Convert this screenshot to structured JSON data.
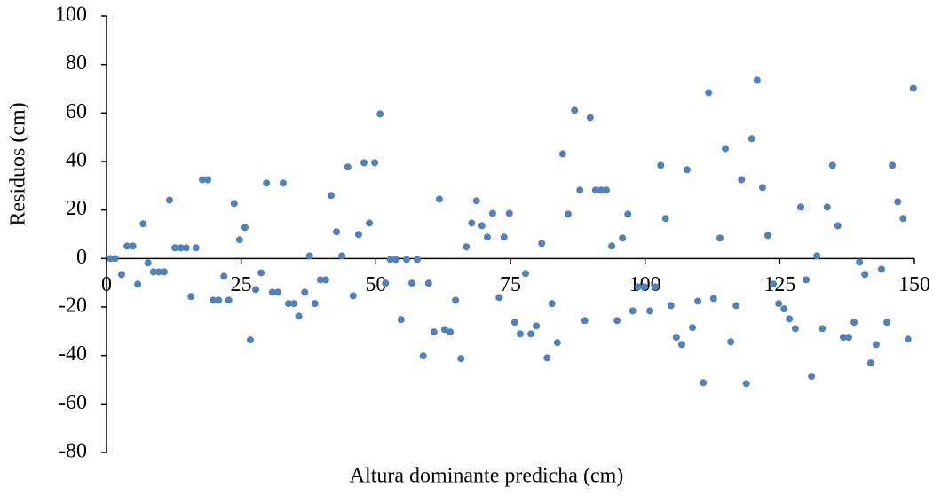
{
  "chart_data": {
    "type": "scatter",
    "x_label": "Altura dominante predicha (cm)",
    "y_label": "Residuos (cm)",
    "color": "#4f81bd",
    "xlim": [
      0,
      150
    ],
    "xticks": [
      0,
      25,
      50,
      75,
      100,
      125,
      150
    ],
    "ylim": [
      -80,
      100
    ],
    "yticks": [
      -80,
      -60,
      -40,
      -20,
      0,
      20,
      40,
      60,
      80,
      100
    ],
    "grid": false,
    "x": [
      0.7,
      1.6,
      2.8,
      3.8,
      4.9,
      5.8,
      6.8,
      7.7,
      8.7,
      9.7,
      10.7,
      11.7,
      12.7,
      13.8,
      14.8,
      15.7,
      16.6,
      17.8,
      18.8,
      19.8,
      20.8,
      21.8,
      22.7,
      23.7,
      24.7,
      25.7,
      26.7,
      27.7,
      28.7,
      29.7,
      30.8,
      31.8,
      32.8,
      33.8,
      34.8,
      35.7,
      36.8,
      37.7,
      38.7,
      39.7,
      40.7,
      41.7,
      42.7,
      43.7,
      44.8,
      45.8,
      46.8,
      47.8,
      48.8,
      49.8,
      50.8,
      51.8,
      52.7,
      53.7,
      54.7,
      55.7,
      56.7,
      57.7,
      58.8,
      59.8,
      60.8,
      61.8,
      62.8,
      63.8,
      64.8,
      65.8,
      66.8,
      67.8,
      68.7,
      69.7,
      70.7,
      71.7,
      72.9,
      73.8,
      74.8,
      75.8,
      76.8,
      77.8,
      78.8,
      79.8,
      80.8,
      81.8,
      82.7,
      83.7,
      84.7,
      85.7,
      86.9,
      87.9,
      88.8,
      89.8,
      90.8,
      91.8,
      92.8,
      93.8,
      94.8,
      95.8,
      96.8,
      97.7,
      98.7,
      99.9,
      100.9,
      101.9,
      102.9,
      103.8,
      104.8,
      105.8,
      106.8,
      107.8,
      108.8,
      109.8,
      110.8,
      111.8,
      112.7,
      113.9,
      114.9,
      115.9,
      116.9,
      117.9,
      118.8,
      119.8,
      120.8,
      121.8,
      122.8,
      123.8,
      124.8,
      125.8,
      126.8,
      127.9,
      128.9,
      129.9,
      130.9,
      131.9,
      132.9,
      133.8,
      134.8,
      135.8,
      136.8,
      137.8,
      138.8,
      139.8,
      140.8,
      141.9,
      142.9,
      143.9,
      144.9,
      145.9,
      146.9,
      147.9,
      148.8,
      149.8
    ],
    "values": [
      0,
      0,
      -6.6,
      5.1,
      5.1,
      -10.6,
      14.3,
      -1.8,
      -5.5,
      -5.5,
      -5.5,
      24.1,
      4.4,
      4.4,
      4.4,
      -15.7,
      4.4,
      32.5,
      32.5,
      -17.2,
      -17.2,
      -7.3,
      -17.2,
      22.7,
      7.7,
      12.8,
      -33.6,
      -12.8,
      -5.9,
      31.1,
      -13.9,
      -13.9,
      31.1,
      -18.6,
      -18.6,
      -23.8,
      -13.9,
      1.1,
      -18.6,
      -8.8,
      -8.8,
      26,
      11,
      1.1,
      37.7,
      -15.4,
      9.9,
      39.5,
      14.6,
      39.5,
      59.6,
      -10.2,
      -0.4,
      -0.4,
      -25.2,
      -0.4,
      -10.2,
      -0.4,
      -40.2,
      -10.2,
      -30.3,
      24.5,
      -29.3,
      -30.3,
      -17.2,
      -41.3,
      4.8,
      14.6,
      23.8,
      13.5,
      8.8,
      18.6,
      -16.1,
      8.8,
      18.6,
      -26.3,
      -31.1,
      -6.2,
      -31.1,
      -27.8,
      6.2,
      -41,
      -18.6,
      -34.7,
      43.1,
      18.3,
      61.1,
      28.2,
      -25.6,
      58.1,
      28.2,
      28.2,
      28.2,
      5.1,
      -25.6,
      8.4,
      18.3,
      -21.6,
      -11.7,
      -11.7,
      -21.6,
      -11.7,
      38.4,
      16.5,
      -19.4,
      -32.5,
      -35.5,
      36.6,
      -28.5,
      -17.6,
      -51.2,
      68.4,
      -16.5,
      8.4,
      45.3,
      -34.4,
      -19.4,
      32.5,
      -51.6,
      49.4,
      73.5,
      29.3,
      9.5,
      -10.6,
      -18.6,
      -20.8,
      -24.9,
      -28.9,
      21.2,
      -8.8,
      -48.6,
      1.1,
      -28.9,
      21.2,
      38.4,
      13.5,
      -32.5,
      -32.5,
      -26.3,
      -1.5,
      -6.6,
      -43.1,
      -35.5,
      -4.4,
      -26.3,
      38.4,
      23.4,
      16.5,
      -33.3,
      70.2
    ]
  }
}
